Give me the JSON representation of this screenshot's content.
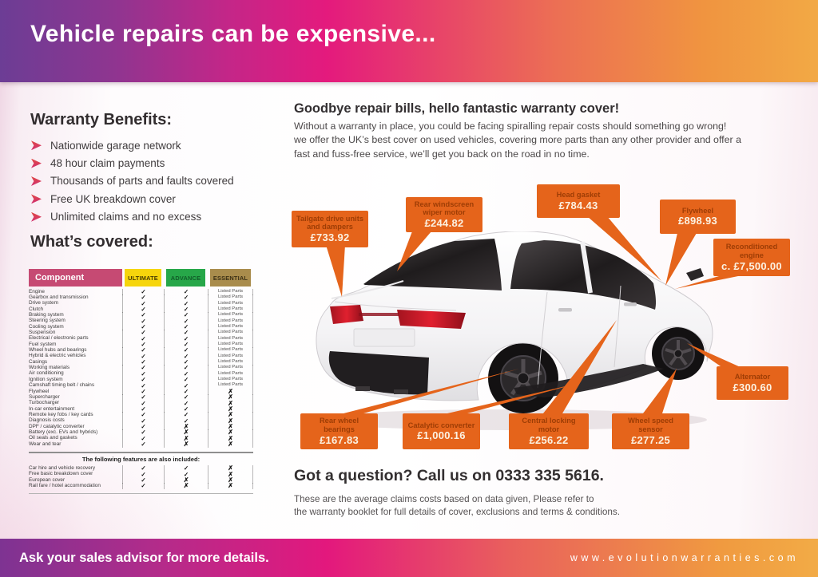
{
  "banner": {
    "title": "Vehicle repairs can be expensive..."
  },
  "benefits": {
    "heading": "Warranty Benefits:",
    "items": [
      "Nationwide garage network",
      "48 hour claim payments",
      "Thousands of parts and faults covered",
      "Free UK breakdown cover",
      "Unlimited claims and no excess"
    ]
  },
  "covered": {
    "heading": "What’s covered:",
    "table": {
      "columns": [
        "Component",
        "ULTIMATE",
        "ADVANCE",
        "ESSENTIAL"
      ],
      "rows": [
        [
          "Engine",
          "✓",
          "✓",
          "Listed Parts"
        ],
        [
          "Gearbox and transmission",
          "✓",
          "✓",
          "Listed Parts"
        ],
        [
          "Drive system",
          "✓",
          "✓",
          "Listed Parts"
        ],
        [
          "Clutch",
          "✓",
          "✓",
          "Listed Parts"
        ],
        [
          "Braking system",
          "✓",
          "✓",
          "Listed Parts"
        ],
        [
          "Steering system",
          "✓",
          "✓",
          "Listed Parts"
        ],
        [
          "Cooling system",
          "✓",
          "✓",
          "Listed Parts"
        ],
        [
          "Suspension",
          "✓",
          "✓",
          "Listed Parts"
        ],
        [
          "Electrical / electronic parts",
          "✓",
          "✓",
          "Listed Parts"
        ],
        [
          "Fuel system",
          "✓",
          "✓",
          "Listed Parts"
        ],
        [
          "Wheel hubs and bearings",
          "✓",
          "✓",
          "Listed Parts"
        ],
        [
          "Hybrid & electric vehicles",
          "✓",
          "✓",
          "Listed Parts"
        ],
        [
          "Casings",
          "✓",
          "✓",
          "Listed Parts"
        ],
        [
          "Working materials",
          "✓",
          "✓",
          "Listed Parts"
        ],
        [
          "Air conditioning",
          "✓",
          "✓",
          "Listed Parts"
        ],
        [
          "Ignition system",
          "✓",
          "✓",
          "Listed Parts"
        ],
        [
          "Camshaft timing belt / chains",
          "✓",
          "✓",
          "Listed Parts"
        ],
        [
          "Flywheel",
          "✓",
          "✓",
          "✗"
        ],
        [
          "Supercharger",
          "✓",
          "✓",
          "✗"
        ],
        [
          "Turbocharger",
          "✓",
          "✓",
          "✗"
        ],
        [
          "In-car entertainment",
          "✓",
          "✓",
          "✗"
        ],
        [
          "Remote key fobs / key cards",
          "✓",
          "✓",
          "✗"
        ],
        [
          "Diagnosis costs",
          "✓",
          "✓",
          "✗"
        ],
        [
          "DPF / catalytic converter",
          "✓",
          "✗",
          "✗"
        ],
        [
          "Battery (exc. EVs and hybrids)",
          "✓",
          "✗",
          "✗"
        ],
        [
          "Oil seals and gaskets",
          "✓",
          "✗",
          "✗"
        ],
        [
          "Wear and tear",
          "✓",
          "✗",
          "✗"
        ]
      ]
    },
    "features": {
      "heading": "The following features are also included:",
      "rows": [
        [
          "Car hire and vehicle recovery",
          "✓",
          "✓",
          "✗"
        ],
        [
          "Free basic breakdown cover",
          "✓",
          "✓",
          "✗"
        ],
        [
          "European cover",
          "✓",
          "✗",
          "✗"
        ],
        [
          "Rail fare / hotel accommodation",
          "✓",
          "✗",
          "✗"
        ]
      ]
    }
  },
  "main": {
    "heading": "Goodbye repair bills, hello fantastic warranty cover!",
    "paragraph": "Without a warranty in place, you could be facing spiralling repair costs should something go wrong!\nwe offer the UK’s best cover on used vehicles, covering more parts than any other provider and offer a\nfast and fuss-free service, we’ll get you back on the road in no time.",
    "callouts": [
      {
        "label": "Tailgate drive units and dampers",
        "price": "£733.92"
      },
      {
        "label": "Rear windscreen wiper motor",
        "price": "£244.82"
      },
      {
        "label": "Head gasket",
        "price": "£784.43"
      },
      {
        "label": "Flywheel",
        "price": "£898.93"
      },
      {
        "label": "Reconditioned engine",
        "price": "c. £7,500.00"
      },
      {
        "label": "Alternator",
        "price": "£300.60"
      },
      {
        "label": "Rear wheel bearings",
        "price": "£167.83"
      },
      {
        "label": "Catalytic converter",
        "price": "£1,000.16"
      },
      {
        "label": "Central locking motor",
        "price": "£256.22"
      },
      {
        "label": "Wheel speed sensor",
        "price": "£277.25"
      }
    ],
    "question": "Got a question? Call us on 0333 335 5616.",
    "disclaimer": "These are the average claims costs based on data given, Please refer to\nthe warranty booklet for full details of cover, exclusions and terms & conditions."
  },
  "footer": {
    "left": "Ask your sales advisor for more details.",
    "right": "www.evolutionwarranties.com"
  },
  "colors": {
    "banner_gradient": [
      "#6c3d95",
      "#e41a7d",
      "#f2a945"
    ],
    "callout_bg": "#e5641b",
    "callout_label_text": "#9e3d05",
    "header_pink": "#c64a73",
    "ultimate_yellow": "#f6d50c",
    "advance_green": "#27a749",
    "essential_tan": "#a98c4c",
    "bullet_pink": "#d12f72"
  }
}
